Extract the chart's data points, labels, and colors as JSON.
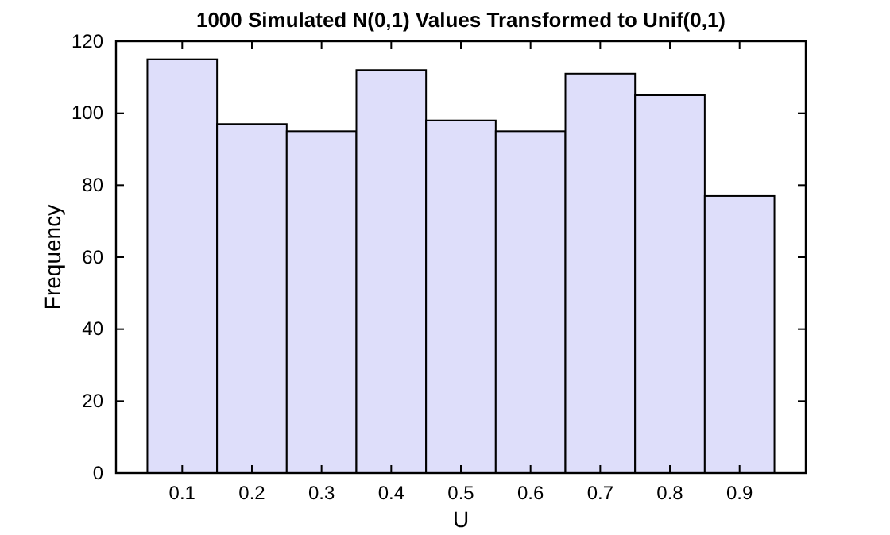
{
  "chart_data": {
    "type": "histogram",
    "title": "1000 Simulated N(0,1) Values Transformed to Unif(0,1)",
    "xlabel": "U",
    "ylabel": "Frequency",
    "bins": [
      0.05,
      0.15,
      0.25,
      0.35,
      0.45,
      0.55,
      0.65,
      0.75,
      0.85,
      0.95
    ],
    "values": [
      115,
      97,
      95,
      112,
      98,
      95,
      111,
      105,
      77
    ],
    "color": "#dedefa",
    "xlim": [
      0.005,
      0.995
    ],
    "xticks": [
      0.1,
      0.2,
      0.3,
      0.4,
      0.5,
      0.6,
      0.7,
      0.8,
      0.9
    ],
    "ylim": [
      0,
      120
    ],
    "yticks": [
      0,
      20,
      40,
      60,
      80,
      100,
      120
    ],
    "grid": false
  }
}
